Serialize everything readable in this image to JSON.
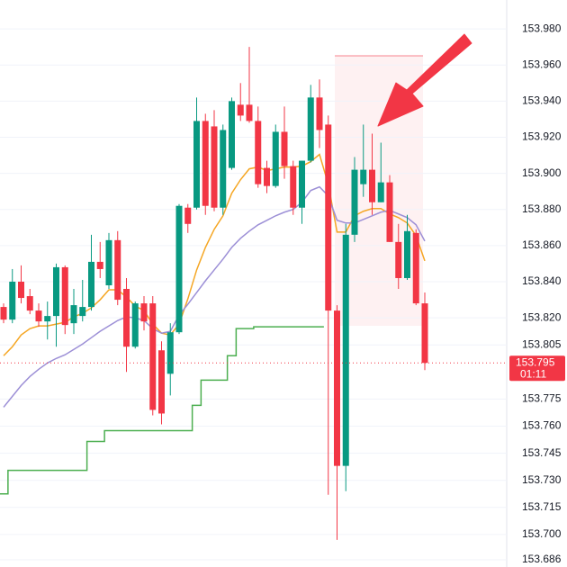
{
  "chart_data": {
    "type": "candlestick",
    "up_color": "#089981",
    "down_color": "#f23645",
    "open": [
      153.826,
      153.819,
      153.84,
      153.832,
      153.824,
      153.818,
      153.821,
      153.848,
      153.817,
      153.821,
      153.826,
      153.851,
      153.838,
      153.863,
      153.836,
      153.804,
      153.828,
      153.828,
      153.802,
      153.789,
      153.812,
      153.881,
      153.881,
      153.929,
      153.926,
      153.881,
      153.903,
      153.938,
      153.938,
      153.929,
      153.903,
      153.893,
      153.923,
      153.904,
      153.881,
      153.907,
      153.942,
      153.927,
      153.824,
      153.738,
      153.866,
      153.894,
      153.902,
      153.884,
      153.895,
      153.862,
      153.842,
      153.867,
      153.828
    ],
    "high": [
      153.828,
      153.847,
      153.849,
      153.836,
      153.828,
      153.829,
      153.85,
      153.849,
      153.836,
      153.841,
      153.866,
      153.862,
      153.867,
      153.868,
      153.842,
      153.829,
      153.832,
      153.832,
      153.807,
      153.817,
      153.883,
      153.883,
      153.942,
      153.933,
      153.935,
      153.927,
      153.942,
      153.95,
      153.97,
      153.937,
      153.907,
      153.927,
      153.937,
      153.907,
      153.907,
      153.949,
      153.952,
      153.932,
      153.827,
      153.872,
      153.909,
      153.927,
      153.922,
      153.917,
      153.899,
      153.872,
      153.877,
      153.869,
      153.834
    ],
    "low": [
      153.817,
      153.817,
      153.828,
      153.822,
      153.815,
      153.808,
      153.804,
      153.811,
      153.811,
      153.818,
      153.824,
      153.842,
      153.836,
      153.827,
      153.79,
      153.803,
      153.813,
      153.766,
      153.761,
      153.777,
      153.811,
      153.867,
      153.88,
      153.877,
      153.879,
      153.877,
      153.902,
      153.929,
      153.928,
      153.892,
      153.889,
      153.892,
      153.897,
      153.877,
      153.872,
      153.906,
      153.914,
      153.722,
      153.697,
      153.724,
      153.862,
      153.887,
      153.877,
      153.884,
      153.862,
      153.836,
      153.841,
      153.827,
      153.791
    ],
    "close": [
      153.819,
      153.84,
      153.831,
      153.824,
      153.818,
      153.821,
      153.848,
      153.816,
      153.827,
      153.826,
      153.851,
      153.847,
      153.863,
      153.83,
      153.804,
      153.828,
      153.818,
      153.769,
      153.767,
      153.812,
      153.882,
      153.872,
      153.929,
      153.882,
      153.881,
      153.924,
      153.94,
      153.932,
      153.929,
      153.894,
      153.893,
      153.923,
      153.904,
      153.881,
      153.907,
      153.942,
      153.924,
      153.824,
      153.738,
      153.866,
      153.902,
      153.902,
      153.884,
      153.895,
      153.862,
      153.842,
      153.868,
      153.828,
      153.795
    ],
    "overlays": [
      {
        "color": "#f5a623",
        "values": [
          153.799,
          153.804,
          153.8105,
          153.814,
          153.8155,
          153.8155,
          153.8165,
          153.8175,
          153.8205,
          153.8225,
          153.8255,
          153.83,
          153.8355,
          153.8355,
          153.8315,
          153.8265,
          153.824,
          153.8165,
          153.8115,
          153.8105,
          153.8165,
          153.8305,
          153.8465,
          153.859,
          153.869,
          153.8765,
          153.889,
          153.8965,
          153.9025,
          153.9035,
          153.9015,
          153.9025,
          153.9035,
          153.9035,
          153.904,
          153.9065,
          153.9105,
          153.894,
          153.8675,
          153.8675,
          153.8765,
          153.879,
          153.8805,
          153.8805,
          153.8775,
          153.8755,
          153.8725,
          153.8655,
          153.8515
        ]
      },
      {
        "color": "#9c8fd6",
        "values": [
          153.7705,
          153.7765,
          153.7825,
          153.7875,
          153.7915,
          153.795,
          153.7975,
          153.7995,
          153.8025,
          153.8055,
          153.809,
          153.8125,
          153.8155,
          153.8185,
          153.8205,
          153.82,
          153.8185,
          153.814,
          153.8115,
          153.8125,
          153.8215,
          153.8275,
          153.834,
          153.8405,
          153.8465,
          153.8525,
          153.859,
          153.864,
          153.868,
          153.8715,
          153.874,
          153.8765,
          153.8785,
          153.88,
          153.884,
          153.8905,
          153.8925,
          153.8875,
          153.874,
          153.8725,
          153.8725,
          153.8745,
          153.8765,
          153.8785,
          153.8795,
          153.8775,
          153.8755,
          153.8715,
          153.8625
        ]
      },
      {
        "color": "#4caf50",
        "step": true,
        "values": [
          153.7225,
          153.7355,
          153.7355,
          153.7355,
          153.7355,
          153.7355,
          153.7355,
          153.7355,
          153.7355,
          153.7355,
          153.7515,
          153.7515,
          153.7575,
          153.7575,
          153.7575,
          153.7575,
          153.7575,
          153.7575,
          153.7575,
          153.7575,
          153.7575,
          153.7575,
          153.7715,
          153.7855,
          153.7855,
          153.7855,
          153.799,
          153.814,
          153.814,
          153.815,
          153.815,
          153.815,
          153.815,
          153.815,
          153.815,
          153.815,
          153.815,
          null,
          null,
          null,
          null,
          null,
          null,
          null,
          null,
          null,
          null,
          null,
          null
        ]
      }
    ],
    "ylim": [
      153.682,
      153.996
    ],
    "yticks": [
      {
        "value": 153.98,
        "label": "153.980"
      },
      {
        "value": 153.96,
        "label": "153.960"
      },
      {
        "value": 153.94,
        "label": "153.940"
      },
      {
        "value": 153.92,
        "label": "153.920"
      },
      {
        "value": 153.9,
        "label": "153.900"
      },
      {
        "value": 153.88,
        "label": "153.880"
      },
      {
        "value": 153.86,
        "label": "153.860"
      },
      {
        "value": 153.84,
        "label": "153.840"
      },
      {
        "value": 153.82,
        "label": "153.820"
      },
      153.805,
      153.775,
      {
        "value": 153.76,
        "label": "153.760"
      },
      153.745,
      {
        "value": 153.73,
        "label": "153.730"
      },
      153.715,
      {
        "value": 153.7,
        "label": "153.700"
      },
      153.686
    ],
    "grid": true,
    "last_price": 153.795,
    "countdown": "01:11"
  }
}
